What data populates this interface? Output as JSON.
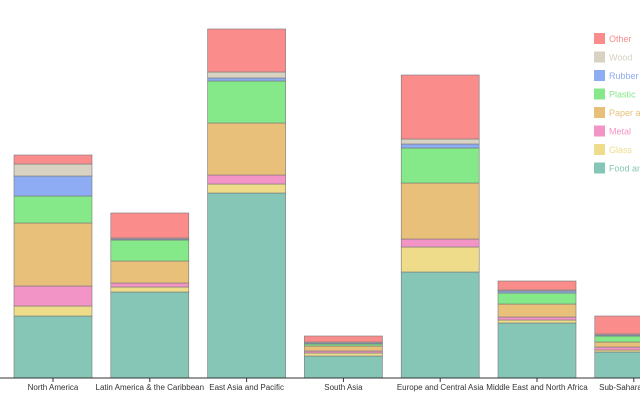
{
  "chart_data": {
    "type": "bar",
    "stacked": true,
    "title": "",
    "xlabel": "",
    "ylabel": "",
    "ylim": [
      0,
      354
    ],
    "legend_position": "right",
    "categories": [
      "North America",
      "Latin America & the Caribbean",
      "East Asia and Pacific",
      "South Asia",
      "Europe and Central Asia",
      "Middle East and North Africa",
      "Sub-Saharan Africa"
    ],
    "series": [
      {
        "name": "Food and green",
        "color": "#85c6b6",
        "values": [
          62,
          86,
          185,
          22,
          106,
          55,
          26
        ]
      },
      {
        "name": "Glass",
        "color": "#efdc8a",
        "values": [
          10,
          5,
          9,
          3,
          25,
          3,
          2
        ]
      },
      {
        "name": "Metal",
        "color": "#f394c6",
        "values": [
          20,
          4,
          9,
          2,
          8,
          3,
          3
        ]
      },
      {
        "name": "Paper and cardboard",
        "color": "#e8c07a",
        "values": [
          63,
          22,
          52,
          5,
          56,
          13,
          5
        ]
      },
      {
        "name": "Plastic",
        "color": "#85e889",
        "values": [
          27,
          21,
          42,
          2,
          35,
          11,
          6
        ]
      },
      {
        "name": "Rubber",
        "color": "#8eacf4",
        "values": [
          20,
          1,
          3,
          1,
          4,
          2,
          1
        ]
      },
      {
        "name": "Wood",
        "color": "#d7d2c2",
        "values": [
          12,
          1,
          6,
          1,
          5,
          1,
          1
        ]
      },
      {
        "name": "Other",
        "color": "#fb8c8c",
        "values": [
          9,
          25,
          43,
          6,
          64,
          9,
          18
        ]
      }
    ],
    "legend_labels": [
      "Other",
      "Wood",
      "Rubber",
      "Plastic",
      "Paper and cardboard",
      "Metal",
      "Glass",
      "Food and green"
    ]
  }
}
